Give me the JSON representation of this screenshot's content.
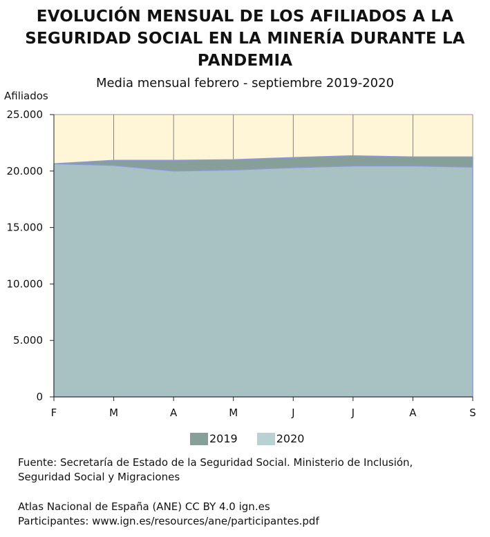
{
  "header": {
    "title_lines": [
      "EVOLUCIÓN MENSUAL DE LOS AFILIADOS A LA",
      "SEGURIDAD SOCIAL EN LA MINERÍA DURANTE LA",
      "PANDEMIA"
    ],
    "subtitle": "Media mensual febrero - septiembre 2019-2020"
  },
  "chart_data": {
    "type": "area",
    "title": "EVOLUCIÓN MENSUAL DE LOS AFILIADOS A LA SEGURIDAD SOCIAL EN LA MINERÍA DURANTE LA PANDEMIA",
    "subtitle": "Media mensual febrero - septiembre 2019-2020",
    "ylabel": "Afiliados",
    "xlabel": "",
    "categories": [
      "F",
      "M",
      "A",
      "M",
      "J",
      "J",
      "A",
      "S"
    ],
    "ylim": [
      0,
      25000
    ],
    "yticks": [
      0,
      5000,
      10000,
      15000,
      20000,
      25000
    ],
    "ytick_labels": [
      "0",
      "5.000",
      "10.000",
      "15.000",
      "20.000",
      "25.000"
    ],
    "series": [
      {
        "name": "2019",
        "color": "#869f99",
        "values": [
          20650,
          20950,
          20950,
          21000,
          21200,
          21350,
          21250,
          21250
        ]
      },
      {
        "name": "2020",
        "color": "#a8c2c3",
        "values": [
          20650,
          20500,
          20000,
          20100,
          20300,
          20450,
          20450,
          20350
        ]
      }
    ],
    "plot_background": "#fff5d7",
    "grid": "vertical",
    "legend_position": "bottom-center"
  },
  "legend": {
    "items": [
      {
        "label": "2019",
        "color": "#869f99"
      },
      {
        "label": "2020",
        "color": "#b8d1d2"
      }
    ]
  },
  "footer": {
    "source_lines": [
      "Fuente: Secretaría de Estado de la Seguridad Social. Ministerio de Inclusión,",
      "Seguridad Social y Migraciones"
    ],
    "credit_lines": [
      "Atlas Nacional de España (ANE) CC BY 4.0 ign.es",
      "Participantes: www.ign.es/resources/ane/participantes.pdf"
    ]
  }
}
